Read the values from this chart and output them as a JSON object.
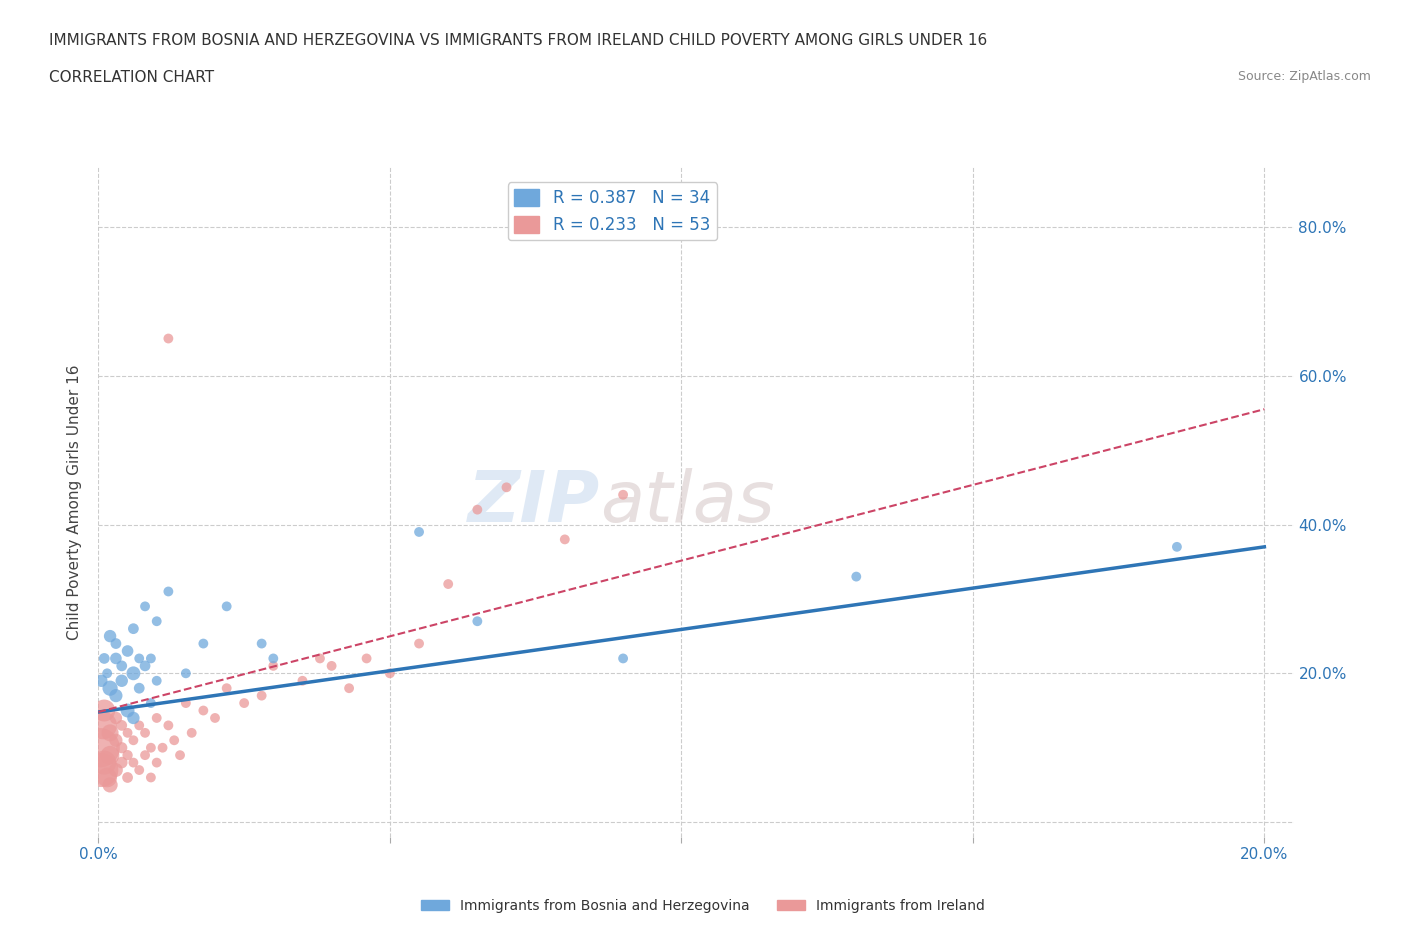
{
  "title": "IMMIGRANTS FROM BOSNIA AND HERZEGOVINA VS IMMIGRANTS FROM IRELAND CHILD POVERTY AMONG GIRLS UNDER 16",
  "subtitle": "CORRELATION CHART",
  "source": "Source: ZipAtlas.com",
  "ylabel": "Child Poverty Among Girls Under 16",
  "xlim": [
    0.0,
    0.205
  ],
  "ylim": [
    -0.02,
    0.88
  ],
  "x_ticks": [
    0.0,
    0.05,
    0.1,
    0.15,
    0.2
  ],
  "y_ticks": [
    0.0,
    0.2,
    0.4,
    0.6,
    0.8
  ],
  "bosnia_color": "#6fa8dc",
  "ireland_color": "#ea9999",
  "bosnia_line_color": "#2e75b6",
  "ireland_line_color": "#cc4466",
  "bosnia_R": 0.387,
  "bosnia_N": 34,
  "ireland_R": 0.233,
  "ireland_N": 53,
  "legend_label_bosnia": "Immigrants from Bosnia and Herzegovina",
  "legend_label_ireland": "Immigrants from Ireland",
  "watermark_zip": "ZIP",
  "watermark_atlas": "atlas",
  "background_color": "#ffffff",
  "bosnia_line_x0": 0.0,
  "bosnia_line_y0": 0.148,
  "bosnia_line_x1": 0.2,
  "bosnia_line_y1": 0.37,
  "ireland_line_x0": 0.0,
  "ireland_line_y0": 0.148,
  "ireland_line_x1": 0.2,
  "ireland_line_y1": 0.555,
  "bosnia_x": [
    0.0005,
    0.001,
    0.0015,
    0.002,
    0.002,
    0.003,
    0.003,
    0.003,
    0.004,
    0.004,
    0.005,
    0.005,
    0.006,
    0.006,
    0.006,
    0.007,
    0.007,
    0.008,
    0.008,
    0.009,
    0.009,
    0.01,
    0.01,
    0.012,
    0.015,
    0.018,
    0.022,
    0.028,
    0.03,
    0.055,
    0.065,
    0.09,
    0.13,
    0.185
  ],
  "bosnia_y": [
    0.19,
    0.22,
    0.2,
    0.18,
    0.25,
    0.17,
    0.22,
    0.24,
    0.19,
    0.21,
    0.15,
    0.23,
    0.2,
    0.14,
    0.26,
    0.18,
    0.22,
    0.21,
    0.29,
    0.16,
    0.22,
    0.27,
    0.19,
    0.31,
    0.2,
    0.24,
    0.29,
    0.24,
    0.22,
    0.39,
    0.27,
    0.22,
    0.33,
    0.37
  ],
  "bosnia_size": [
    80,
    60,
    50,
    120,
    80,
    90,
    70,
    60,
    80,
    60,
    100,
    70,
    100,
    80,
    60,
    60,
    50,
    60,
    50,
    50,
    50,
    50,
    50,
    50,
    50,
    50,
    50,
    50,
    50,
    50,
    50,
    50,
    50,
    50
  ],
  "ireland_x": [
    0.0003,
    0.0005,
    0.0008,
    0.001,
    0.001,
    0.0015,
    0.002,
    0.002,
    0.002,
    0.003,
    0.003,
    0.003,
    0.004,
    0.004,
    0.004,
    0.005,
    0.005,
    0.005,
    0.006,
    0.006,
    0.007,
    0.007,
    0.008,
    0.008,
    0.009,
    0.009,
    0.01,
    0.01,
    0.011,
    0.012,
    0.013,
    0.014,
    0.015,
    0.016,
    0.018,
    0.02,
    0.022,
    0.025,
    0.028,
    0.03,
    0.035,
    0.038,
    0.04,
    0.043,
    0.046,
    0.05,
    0.055,
    0.06,
    0.065,
    0.07,
    0.08,
    0.09,
    0.012
  ],
  "ireland_y": [
    0.1,
    0.07,
    0.13,
    0.08,
    0.15,
    0.06,
    0.09,
    0.12,
    0.05,
    0.07,
    0.11,
    0.14,
    0.08,
    0.1,
    0.13,
    0.06,
    0.09,
    0.12,
    0.08,
    0.11,
    0.07,
    0.13,
    0.09,
    0.12,
    0.06,
    0.1,
    0.08,
    0.14,
    0.1,
    0.13,
    0.11,
    0.09,
    0.16,
    0.12,
    0.15,
    0.14,
    0.18,
    0.16,
    0.17,
    0.21,
    0.19,
    0.22,
    0.21,
    0.18,
    0.22,
    0.2,
    0.24,
    0.32,
    0.42,
    0.45,
    0.38,
    0.44,
    0.65
  ],
  "ireland_size": [
    800,
    600,
    400,
    300,
    250,
    200,
    180,
    150,
    120,
    100,
    90,
    80,
    70,
    65,
    60,
    60,
    55,
    50,
    50,
    50,
    50,
    50,
    50,
    50,
    50,
    50,
    50,
    50,
    50,
    50,
    50,
    50,
    50,
    50,
    50,
    50,
    50,
    50,
    50,
    50,
    50,
    50,
    50,
    50,
    50,
    50,
    50,
    50,
    50,
    50,
    50,
    50,
    50
  ]
}
